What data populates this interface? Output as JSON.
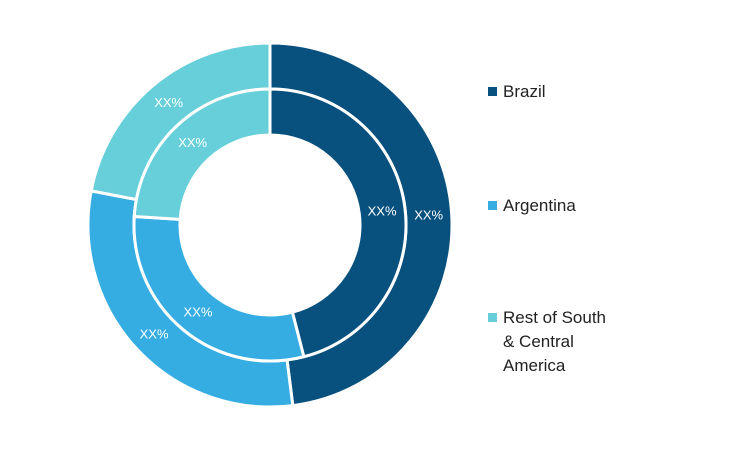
{
  "chart_data": {
    "type": "pie",
    "variant": "nested-donut",
    "categories": [
      "Brazil",
      "Argentina",
      "Rest of South & Central America"
    ],
    "colors": [
      "#08507e",
      "#35ade3",
      "#66cfd9"
    ],
    "rings": [
      {
        "ring": "outer",
        "values": [
          48,
          30,
          22
        ],
        "labels": [
          "XX%",
          "XX%",
          "XX%"
        ]
      },
      {
        "ring": "inner",
        "values": [
          46,
          30,
          24
        ],
        "labels": [
          "XX%",
          "XX%",
          "XX%"
        ]
      }
    ],
    "legend": {
      "placement": "right",
      "entries": [
        "Brazil",
        "Argentina",
        "Rest of South\n& Central\nAmerica"
      ]
    }
  }
}
